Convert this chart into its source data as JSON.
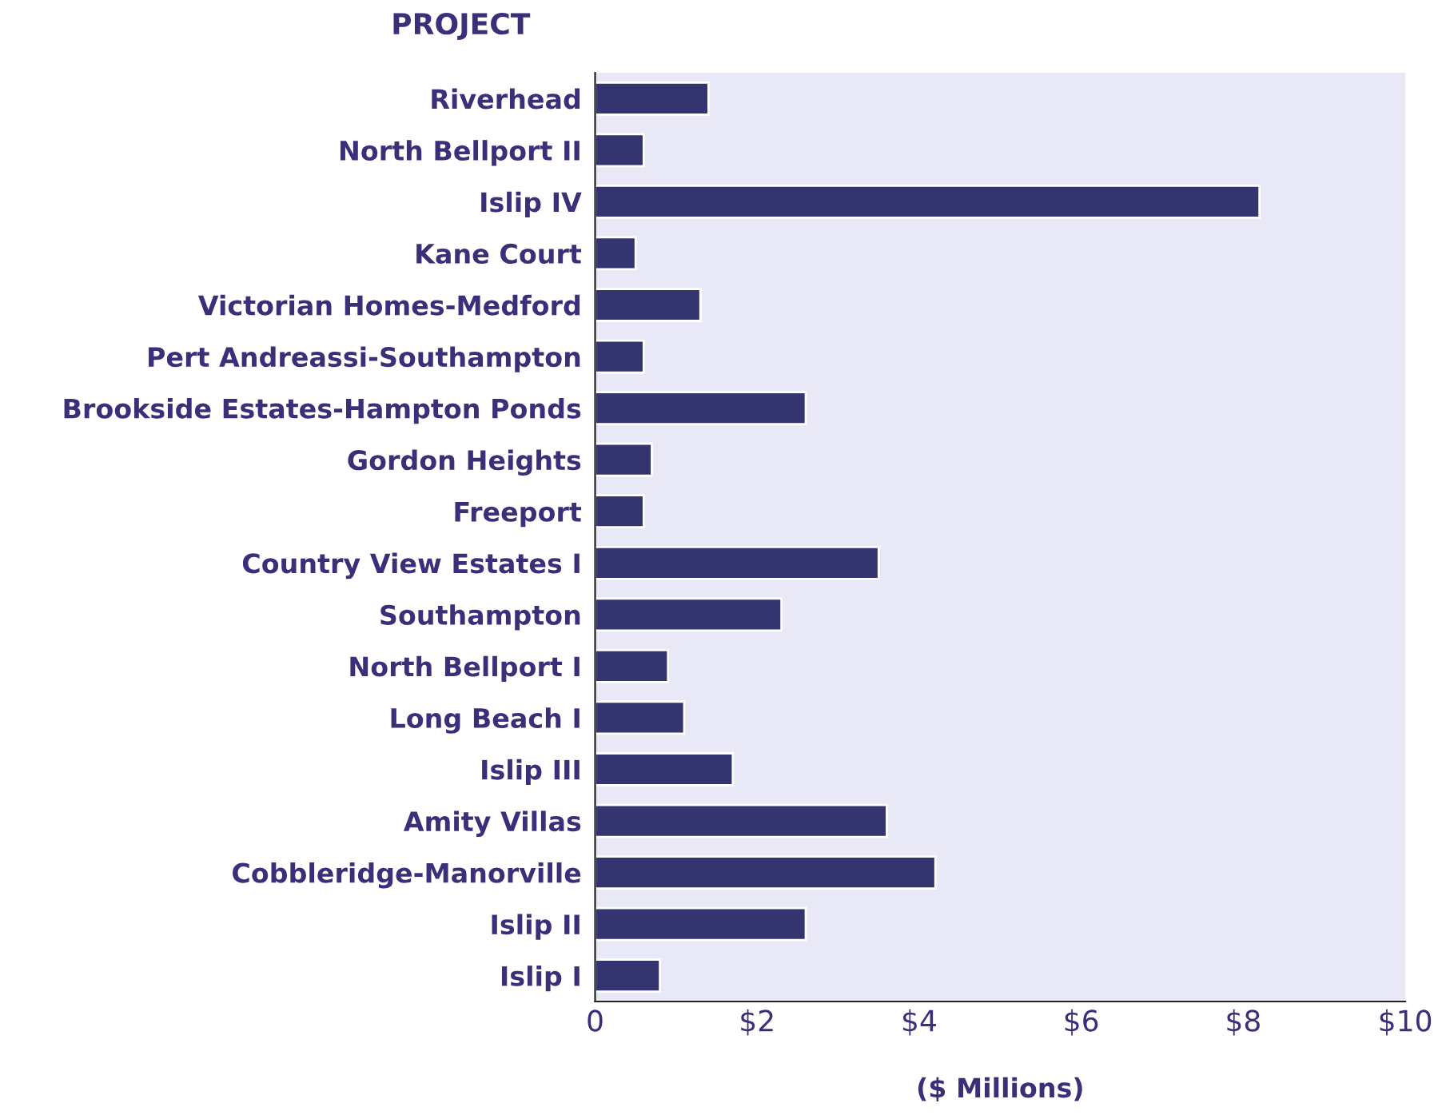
{
  "chart_data": {
    "type": "bar",
    "orientation": "horizontal",
    "ylabel": "PROJECT",
    "xlabel": "($ Millions)",
    "categories": [
      "Riverhead",
      "North Bellport II",
      "Islip IV",
      "Kane Court",
      "Victorian Homes-Medford",
      "Pert Andreassi-Southampton",
      "Brookside Estates-Hampton Ponds",
      "Gordon Heights",
      "Freeport",
      "Country View Estates I",
      "Southampton",
      "North Bellport I",
      "Long Beach I",
      "Islip III",
      "Amity Villas",
      "Cobbleridge-Manorville",
      "Islip II",
      "Islip I"
    ],
    "values": [
      1.4,
      0.6,
      8.2,
      0.5,
      1.3,
      0.6,
      2.6,
      0.7,
      0.6,
      3.5,
      2.3,
      0.9,
      1.1,
      1.7,
      3.6,
      4.2,
      2.6,
      0.8
    ],
    "color": "#34346e",
    "xlim": [
      0,
      10
    ],
    "xticks": [
      {
        "value": 0,
        "label": "0"
      },
      {
        "value": 2,
        "label": "$2"
      },
      {
        "value": 4,
        "label": "$4"
      },
      {
        "value": 6,
        "label": "$6"
      },
      {
        "value": 8,
        "label": "$8"
      },
      {
        "value": 10,
        "label": "$10"
      }
    ],
    "grid": false,
    "legend": false
  }
}
